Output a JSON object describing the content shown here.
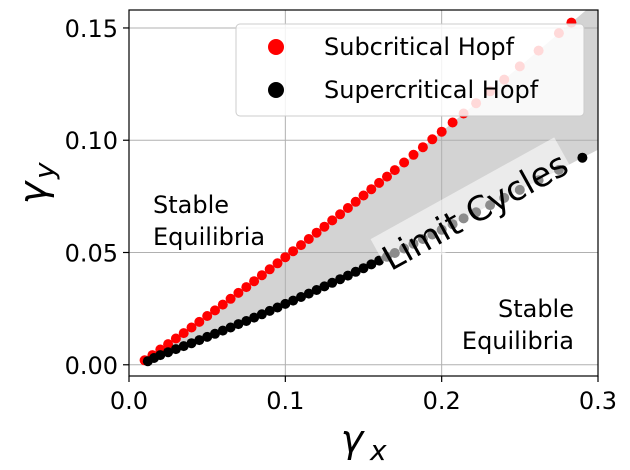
{
  "chart_data": {
    "type": "scatter",
    "xlabel": "γx",
    "ylabel": "γy",
    "xlim": [
      0.0,
      0.3
    ],
    "ylim": [
      -0.005,
      0.158
    ],
    "xticks": [
      {
        "v": 0.0,
        "label": "0.0"
      },
      {
        "v": 0.1,
        "label": "0.1"
      },
      {
        "v": 0.2,
        "label": "0.2"
      },
      {
        "v": 0.3,
        "label": "0.3"
      }
    ],
    "yticks": [
      {
        "v": 0.0,
        "label": "0.00"
      },
      {
        "v": 0.05,
        "label": "0.05"
      },
      {
        "v": 0.1,
        "label": "0.10"
      },
      {
        "v": 0.15,
        "label": "0.15"
      }
    ],
    "grid": true,
    "legend_position": "top-right",
    "series": [
      {
        "name": "Subcritical Hopf",
        "color": "#ff0000",
        "x": [
          0.01,
          0.015,
          0.02,
          0.025,
          0.03,
          0.035,
          0.04,
          0.045,
          0.05,
          0.055,
          0.06,
          0.065,
          0.07,
          0.075,
          0.08,
          0.085,
          0.09,
          0.095,
          0.1,
          0.105,
          0.11,
          0.115,
          0.12,
          0.125,
          0.13,
          0.135,
          0.14,
          0.145,
          0.15,
          0.155,
          0.16,
          0.165,
          0.17,
          0.176,
          0.182,
          0.188,
          0.194,
          0.2,
          0.207,
          0.214,
          0.222,
          0.231,
          0.24,
          0.25,
          0.262,
          0.275,
          0.283
        ],
        "y": [
          0.002,
          0.0043,
          0.0068,
          0.0092,
          0.0117,
          0.0141,
          0.0166,
          0.0191,
          0.0217,
          0.0242,
          0.0268,
          0.0294,
          0.032,
          0.0346,
          0.0372,
          0.0399,
          0.0425,
          0.0452,
          0.0479,
          0.0506,
          0.0533,
          0.056,
          0.0588,
          0.0615,
          0.0643,
          0.067,
          0.0698,
          0.0726,
          0.0754,
          0.0782,
          0.081,
          0.0838,
          0.0867,
          0.0901,
          0.0935,
          0.0969,
          0.1004,
          0.1038,
          0.1079,
          0.1119,
          0.1165,
          0.1218,
          0.127,
          0.1329,
          0.1399,
          0.1477,
          0.1524
        ]
      },
      {
        "name": "Supercritical Hopf",
        "color": "#000000",
        "x": [
          0.012,
          0.016,
          0.02,
          0.025,
          0.03,
          0.035,
          0.04,
          0.045,
          0.05,
          0.055,
          0.06,
          0.065,
          0.07,
          0.075,
          0.08,
          0.085,
          0.09,
          0.095,
          0.1,
          0.105,
          0.11,
          0.115,
          0.12,
          0.125,
          0.13,
          0.135,
          0.14,
          0.145,
          0.15,
          0.155,
          0.16,
          0.165,
          0.17,
          0.176,
          0.182,
          0.188,
          0.194,
          0.2,
          0.207,
          0.214,
          0.222,
          0.231,
          0.24,
          0.25,
          0.262,
          0.275,
          0.29
        ],
        "y": [
          0.0016,
          0.003,
          0.0043,
          0.0056,
          0.007,
          0.0083,
          0.0096,
          0.011,
          0.0124,
          0.0138,
          0.0152,
          0.0166,
          0.0181,
          0.0195,
          0.021,
          0.0225,
          0.024,
          0.0255,
          0.0271,
          0.0286,
          0.0302,
          0.0317,
          0.0333,
          0.0349,
          0.0365,
          0.0381,
          0.0397,
          0.0414,
          0.043,
          0.0447,
          0.0464,
          0.0481,
          0.0498,
          0.0518,
          0.0539,
          0.056,
          0.058,
          0.0601,
          0.0626,
          0.0652,
          0.0679,
          0.0711,
          0.0743,
          0.0779,
          0.0822,
          0.0868,
          0.0922
        ]
      }
    ],
    "annotations": {
      "stable_left": [
        "Stable",
        "Equilibria"
      ],
      "stable_right": [
        "Stable",
        "Equilibria"
      ],
      "limit_cycles": "Limit Cycles"
    },
    "colors": {
      "shaded_region": "#d3d3d3",
      "grid": "#b0b0b0"
    }
  }
}
